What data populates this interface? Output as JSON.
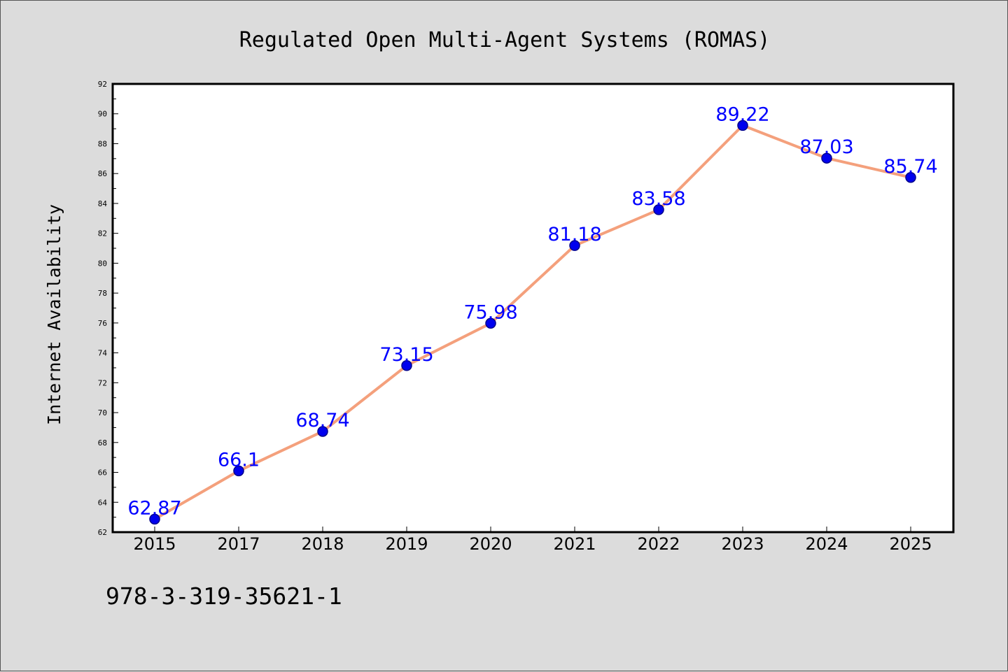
{
  "chart_data": {
    "type": "line",
    "title": "Regulated Open Multi-Agent Systems (ROMAS)",
    "xlabel": "",
    "ylabel": "Internet Availability",
    "categories": [
      "2015",
      "2017",
      "2018",
      "2019",
      "2020",
      "2021",
      "2022",
      "2023",
      "2024",
      "2025"
    ],
    "series": [
      {
        "values": [
          62.87,
          66.1,
          68.74,
          73.15,
          75.98,
          81.18,
          83.58,
          89.22,
          87.03,
          85.74
        ],
        "labels": [
          "62.87",
          "66.1",
          "68.74",
          "73.15",
          "75.98",
          "81.18",
          "83.58",
          "89.22",
          "87.03",
          "85.74"
        ]
      }
    ],
    "ylim": [
      62,
      92
    ],
    "yticks": [
      "62",
      "64",
      "66",
      "68",
      "70",
      "72",
      "74",
      "76",
      "78",
      "80",
      "82",
      "84",
      "86",
      "88",
      "90",
      "92"
    ],
    "grid": false,
    "legend": "none",
    "colors": {
      "line": "#f4a07c",
      "marker": "#0000ee",
      "marker_edge": "#00008b",
      "data_label": "#0000ff",
      "background": "#dcdcdc",
      "plot_background": "#ffffff"
    }
  },
  "footnote": "978-3-319-35621-1"
}
